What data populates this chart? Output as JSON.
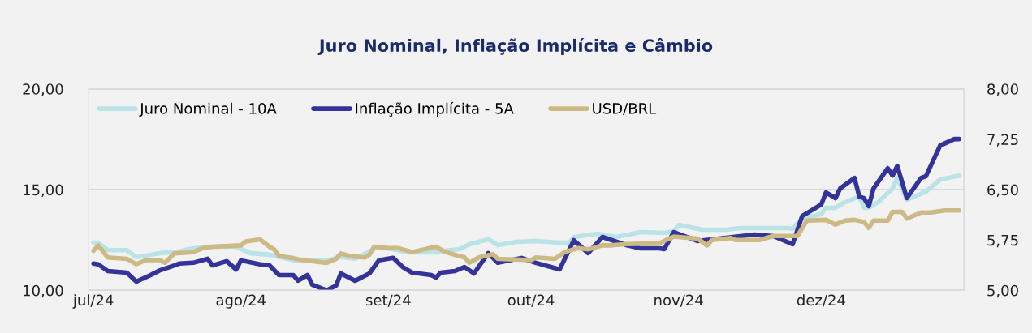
{
  "chart_data": {
    "type": "line",
    "title": "Juro Nominal, Inflação Implícita e Câmbio",
    "series": [
      {
        "name": "Juro Nominal - 10A",
        "color": "#b9e3e6",
        "axis": "y",
        "x": [
          "2024-07-01",
          "2024-07-02",
          "2024-07-04",
          "2024-07-08",
          "2024-07-10",
          "2024-07-15",
          "2024-07-19",
          "2024-07-21",
          "2024-07-25",
          "2024-07-31",
          "2024-08-03",
          "2024-08-07",
          "2024-08-13",
          "2024-08-19",
          "2024-08-22",
          "2024-08-25",
          "2024-08-30",
          "2024-09-05",
          "2024-09-11",
          "2024-09-13",
          "2024-09-16",
          "2024-09-18",
          "2024-09-22",
          "2024-09-24",
          "2024-09-28",
          "2024-10-02",
          "2024-10-07",
          "2024-10-09",
          "2024-10-10",
          "2024-10-15",
          "2024-10-19",
          "2024-10-24",
          "2024-10-29",
          "2024-10-31",
          "2024-11-01",
          "2024-11-06",
          "2024-11-11",
          "2024-11-14",
          "2024-11-18",
          "2024-11-24",
          "2024-11-25",
          "2024-11-27",
          "2024-12-01",
          "2024-12-02",
          "2024-12-04",
          "2024-12-06",
          "2024-12-09",
          "2024-12-10",
          "2024-12-11",
          "2024-12-13",
          "2024-12-16",
          "2024-12-17",
          "2024-12-19",
          "2024-12-23",
          "2024-12-26",
          "2024-12-30"
        ],
        "values": [
          12.37,
          12.37,
          12.0,
          12.0,
          11.65,
          11.85,
          11.93,
          12.05,
          12.17,
          12.17,
          11.85,
          11.77,
          11.45,
          11.49,
          11.65,
          11.57,
          12.17,
          11.89,
          11.89,
          11.97,
          12.05,
          12.29,
          12.53,
          12.25,
          12.41,
          12.45,
          12.37,
          12.37,
          12.65,
          12.81,
          12.65,
          12.89,
          12.85,
          12.93,
          13.25,
          13.01,
          13.01,
          13.09,
          13.09,
          13.09,
          13.05,
          13.57,
          13.78,
          14.1,
          14.1,
          14.38,
          14.66,
          14.1,
          14.1,
          14.38,
          15.06,
          15.58,
          14.5,
          14.9,
          15.5,
          15.7
        ]
      },
      {
        "name": "Inflação Implícita - 5A",
        "color": "#343399",
        "axis": "y",
        "x": [
          "2024-07-01",
          "2024-07-02",
          "2024-07-04",
          "2024-07-08",
          "2024-07-10",
          "2024-07-13",
          "2024-07-15",
          "2024-07-18",
          "2024-07-19",
          "2024-07-22",
          "2024-07-25",
          "2024-07-26",
          "2024-07-29",
          "2024-07-31",
          "2024-08-01",
          "2024-08-05",
          "2024-08-07",
          "2024-08-09",
          "2024-08-12",
          "2024-08-13",
          "2024-08-15",
          "2024-08-16",
          "2024-08-19",
          "2024-08-21",
          "2024-08-22",
          "2024-08-25",
          "2024-08-28",
          "2024-08-30",
          "2024-09-02",
          "2024-09-04",
          "2024-09-06",
          "2024-09-10",
          "2024-09-11",
          "2024-09-12",
          "2024-09-15",
          "2024-09-17",
          "2024-09-19",
          "2024-09-22",
          "2024-09-24",
          "2024-09-29",
          "2024-10-02",
          "2024-10-07",
          "2024-10-10",
          "2024-10-13",
          "2024-10-16",
          "2024-10-21",
          "2024-10-24",
          "2024-10-28",
          "2024-10-29",
          "2024-10-31",
          "2024-11-05",
          "2024-11-17",
          "2024-11-21",
          "2024-11-25",
          "2024-11-27",
          "2024-12-01",
          "2024-12-02",
          "2024-12-04",
          "2024-12-05",
          "2024-12-08",
          "2024-12-09",
          "2024-12-10",
          "2024-12-11",
          "2024-12-12",
          "2024-12-15",
          "2024-12-16",
          "2024-12-17",
          "2024-12-19",
          "2024-12-22",
          "2024-12-23",
          "2024-12-26",
          "2024-12-29",
          "2024-12-30"
        ],
        "values": [
          11.33,
          11.29,
          10.96,
          10.88,
          10.44,
          10.76,
          11.0,
          11.24,
          11.33,
          11.37,
          11.57,
          11.24,
          11.45,
          11.04,
          11.49,
          11.29,
          11.24,
          10.76,
          10.76,
          10.48,
          10.76,
          10.28,
          10.0,
          10.24,
          10.84,
          10.48,
          10.84,
          11.49,
          11.61,
          11.16,
          10.88,
          10.76,
          10.64,
          10.88,
          10.96,
          11.16,
          10.84,
          11.85,
          11.37,
          11.61,
          11.37,
          11.04,
          12.49,
          11.85,
          12.65,
          12.25,
          12.09,
          12.09,
          12.05,
          12.89,
          12.45,
          12.77,
          12.69,
          12.29,
          13.69,
          14.26,
          14.86,
          14.58,
          15.06,
          15.58,
          14.66,
          14.58,
          14.18,
          15.06,
          16.06,
          15.7,
          16.18,
          14.58,
          15.58,
          15.66,
          17.19,
          17.51,
          17.51
        ]
      },
      {
        "name": "USD/BRL",
        "color": "#cdb983",
        "axis": "y2",
        "x": [
          "2024-07-01",
          "2024-07-02",
          "2024-07-04",
          "2024-07-08",
          "2024-07-10",
          "2024-07-12",
          "2024-07-15",
          "2024-07-16",
          "2024-07-18",
          "2024-07-22",
          "2024-07-24",
          "2024-07-26",
          "2024-08-01",
          "2024-08-02",
          "2024-08-05",
          "2024-08-07",
          "2024-08-08",
          "2024-08-09",
          "2024-08-12",
          "2024-08-14",
          "2024-08-19",
          "2024-08-21",
          "2024-08-22",
          "2024-08-24",
          "2024-08-27",
          "2024-08-28",
          "2024-08-29",
          "2024-09-01",
          "2024-09-03",
          "2024-09-06",
          "2024-09-11",
          "2024-09-13",
          "2024-09-17",
          "2024-09-18",
          "2024-09-20",
          "2024-09-23",
          "2024-09-24",
          "2024-10-01",
          "2024-10-02",
          "2024-10-06",
          "2024-10-08",
          "2024-10-11",
          "2024-10-13",
          "2024-10-16",
          "2024-10-18",
          "2024-10-21",
          "2024-10-28",
          "2024-10-30",
          "2024-10-31",
          "2024-11-05",
          "2024-11-07",
          "2024-11-08",
          "2024-11-12",
          "2024-11-13",
          "2024-11-18",
          "2024-11-21",
          "2024-11-26",
          "2024-11-28",
          "2024-12-02",
          "2024-12-04",
          "2024-12-06",
          "2024-12-08",
          "2024-12-10",
          "2024-12-11",
          "2024-12-12",
          "2024-12-15",
          "2024-12-16",
          "2024-12-18",
          "2024-12-19",
          "2024-12-22",
          "2024-12-24",
          "2024-12-27",
          "2024-12-30"
        ],
        "values": [
          5.59,
          5.67,
          5.49,
          5.47,
          5.39,
          5.45,
          5.45,
          5.41,
          5.55,
          5.57,
          5.63,
          5.65,
          5.67,
          5.73,
          5.76,
          5.65,
          5.61,
          5.51,
          5.48,
          5.45,
          5.41,
          5.47,
          5.55,
          5.51,
          5.49,
          5.53,
          5.65,
          5.63,
          5.63,
          5.57,
          5.65,
          5.57,
          5.49,
          5.41,
          5.49,
          5.54,
          5.47,
          5.45,
          5.49,
          5.47,
          5.57,
          5.63,
          5.61,
          5.67,
          5.67,
          5.69,
          5.7,
          5.77,
          5.8,
          5.77,
          5.67,
          5.75,
          5.78,
          5.75,
          5.75,
          5.81,
          5.81,
          6.04,
          6.05,
          5.98,
          6.04,
          6.05,
          6.02,
          5.93,
          6.04,
          6.04,
          6.17,
          6.17,
          6.07,
          6.16,
          6.16,
          6.19,
          6.19
        ]
      }
    ],
    "xlim": [
      "2024-06-30",
      "2024-12-31"
    ],
    "xticks": [
      {
        "value": "2024-07-01",
        "label": "jul/24"
      },
      {
        "value": "2024-08-01",
        "label": "ago/24"
      },
      {
        "value": "2024-09-01",
        "label": "set/24"
      },
      {
        "value": "2024-10-01",
        "label": "out/24"
      },
      {
        "value": "2024-11-01",
        "label": "nov/24"
      },
      {
        "value": "2024-12-01",
        "label": "dez/24"
      }
    ],
    "ylim": [
      10,
      20
    ],
    "yticks": [
      {
        "value": 10,
        "label": "10,00"
      },
      {
        "value": 15,
        "label": "15,00"
      },
      {
        "value": 20,
        "label": "20,00"
      }
    ],
    "y2lim": [
      5,
      8
    ],
    "y2ticks": [
      {
        "value": 5,
        "label": "5,00"
      },
      {
        "value": 5.75,
        "label": "5,75"
      },
      {
        "value": 6.5,
        "label": "6,50"
      },
      {
        "value": 7.25,
        "label": "7,25"
      },
      {
        "value": 8,
        "label": "8,00"
      }
    ],
    "grid": "y",
    "legend": "top",
    "marker": "none",
    "line_style": "solid"
  }
}
